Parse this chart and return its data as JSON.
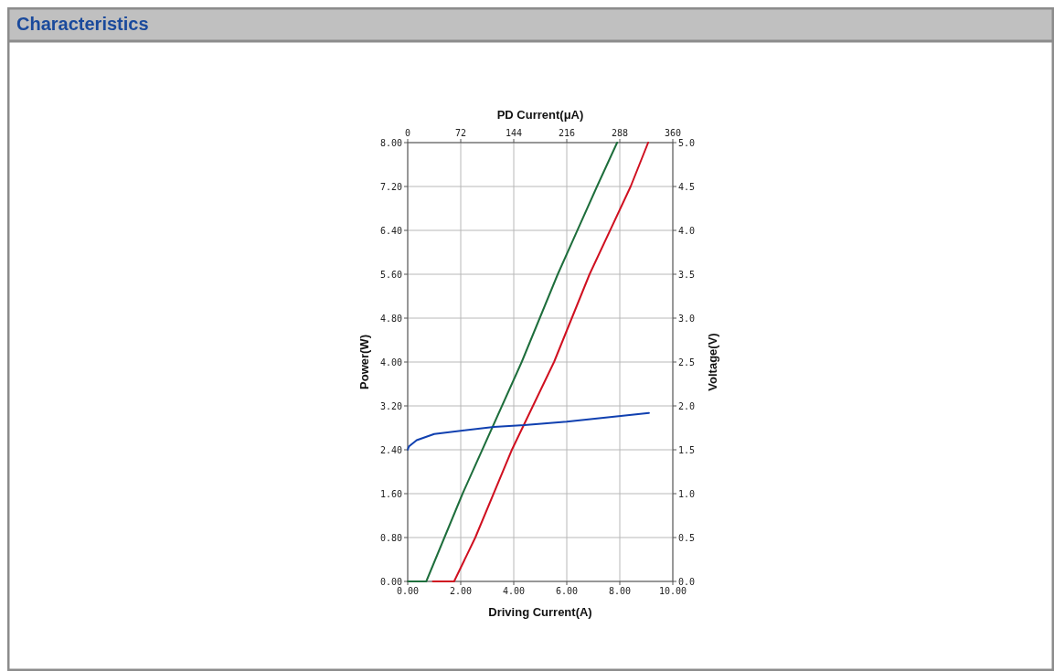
{
  "chart_data": {
    "type": "line",
    "title": "Characteristics",
    "xlabel": "Driving Current(A)",
    "ylabel": "Power(W)",
    "y2label": "Voltage(V)",
    "x2label": "PD Current(μA)",
    "xlim": [
      0,
      10
    ],
    "xticks": [
      {
        "value": 0,
        "label": "0.00"
      },
      {
        "value": 2,
        "label": "2.00"
      },
      {
        "value": 4,
        "label": "4.00"
      },
      {
        "value": 6,
        "label": "6.00"
      },
      {
        "value": 8,
        "label": "8.00"
      },
      {
        "value": 10,
        "label": "10.00"
      }
    ],
    "x2lim": [
      0,
      360
    ],
    "x2ticks": [
      0,
      72,
      144,
      216,
      288,
      360
    ],
    "ylim": [
      0,
      8
    ],
    "yticks": [
      {
        "value": 0,
        "label": "0.00"
      },
      {
        "value": 0.8,
        "label": "0.80"
      },
      {
        "value": 1.6,
        "label": "1.60"
      },
      {
        "value": 2.4,
        "label": "2.40"
      },
      {
        "value": 3.2,
        "label": "3.20"
      },
      {
        "value": 4,
        "label": "4.00"
      },
      {
        "value": 4.8,
        "label": "4.80"
      },
      {
        "value": 5.6,
        "label": "5.60"
      },
      {
        "value": 6.4,
        "label": "6.40"
      },
      {
        "value": 7.2,
        "label": "7.20"
      },
      {
        "value": 8,
        "label": "8.00"
      }
    ],
    "y2lim": [
      0,
      5
    ],
    "y2ticks": [
      {
        "value": 0,
        "label": "0.0"
      },
      {
        "value": 0.5,
        "label": "0.5"
      },
      {
        "value": 1,
        "label": "1.0"
      },
      {
        "value": 1.5,
        "label": "1.5"
      },
      {
        "value": 2,
        "label": "2.0"
      },
      {
        "value": 2.5,
        "label": "2.5"
      },
      {
        "value": 3,
        "label": "3.0"
      },
      {
        "value": 3.5,
        "label": "3.5"
      },
      {
        "value": 4,
        "label": "4.0"
      },
      {
        "value": 4.5,
        "label": "4.5"
      },
      {
        "value": 5,
        "label": "5.0"
      }
    ],
    "grid": true,
    "marker": "none",
    "line_style": "solid",
    "series": [
      {
        "color": "#1e6e3c",
        "x": [
          0,
          0.7,
          2.07,
          4.3,
          5.66,
          7.14,
          7.9
        ],
        "values": [
          0,
          0,
          1.6,
          4.0,
          5.6,
          7.2,
          8.0
        ]
      },
      {
        "color": "#d01020",
        "x": [
          0.95,
          1.75,
          2.55,
          3.93,
          5.52,
          6.86,
          8.41,
          9.07
        ],
        "values": [
          0,
          0,
          0.8,
          2.4,
          4.0,
          5.6,
          7.2,
          8.0
        ]
      },
      {
        "color": "#1040b0",
        "axis": "y2",
        "x": [
          0,
          0.05,
          0.34,
          1,
          3.25,
          4.4,
          6,
          9.1
        ],
        "values": [
          1.5,
          1.54,
          1.61,
          1.68,
          1.76,
          1.78,
          1.82,
          1.92
        ]
      }
    ]
  }
}
